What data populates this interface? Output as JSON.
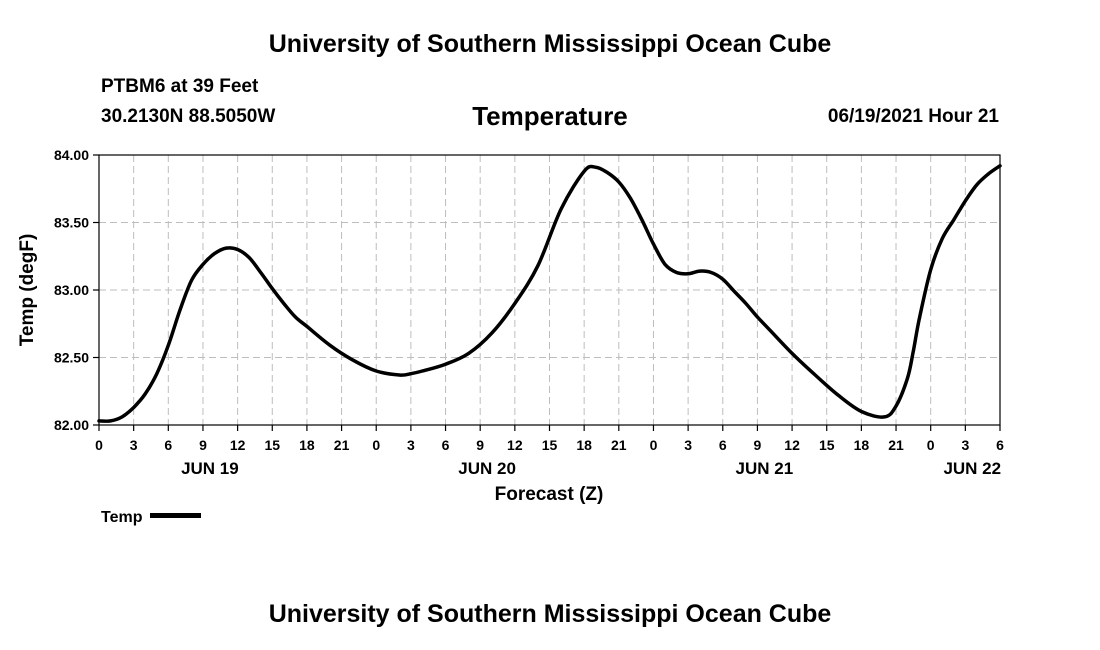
{
  "header": {
    "title": "University of Southern Mississippi Ocean Cube",
    "station": "PTBM6 at 39 Feet",
    "coords": "30.2130N  88.5050W",
    "datetime": "06/19/2021 Hour 21"
  },
  "footer": {
    "title": "University of Southern Mississippi Ocean Cube"
  },
  "chart_data": {
    "type": "line",
    "title": "Temperature",
    "xlabel": "Forecast (Z)",
    "ylabel": "Temp (degF)",
    "ylim": [
      82.0,
      84.0
    ],
    "yticks": [
      "82.00",
      "82.50",
      "83.00",
      "83.50",
      "84.00"
    ],
    "x_unit": "hours since JUN 19 00Z",
    "xlim": [
      0,
      78
    ],
    "xticks": [
      {
        "x": 0,
        "label": "0"
      },
      {
        "x": 3,
        "label": "3"
      },
      {
        "x": 6,
        "label": "6"
      },
      {
        "x": 9,
        "label": "9"
      },
      {
        "x": 12,
        "label": "12"
      },
      {
        "x": 15,
        "label": "15"
      },
      {
        "x": 18,
        "label": "18"
      },
      {
        "x": 21,
        "label": "21"
      },
      {
        "x": 24,
        "label": "0"
      },
      {
        "x": 27,
        "label": "3"
      },
      {
        "x": 30,
        "label": "6"
      },
      {
        "x": 33,
        "label": "9"
      },
      {
        "x": 36,
        "label": "12"
      },
      {
        "x": 39,
        "label": "15"
      },
      {
        "x": 42,
        "label": "18"
      },
      {
        "x": 45,
        "label": "21"
      },
      {
        "x": 48,
        "label": "0"
      },
      {
        "x": 51,
        "label": "3"
      },
      {
        "x": 54,
        "label": "6"
      },
      {
        "x": 57,
        "label": "9"
      },
      {
        "x": 60,
        "label": "12"
      },
      {
        "x": 63,
        "label": "15"
      },
      {
        "x": 66,
        "label": "18"
      },
      {
        "x": 69,
        "label": "21"
      },
      {
        "x": 72,
        "label": "0"
      },
      {
        "x": 75,
        "label": "3"
      },
      {
        "x": 78,
        "label": "6"
      }
    ],
    "date_labels": [
      {
        "x": 9.6,
        "label": "JUN 19"
      },
      {
        "x": 33.6,
        "label": "JUN 20"
      },
      {
        "x": 57.6,
        "label": "JUN 21"
      },
      {
        "x": 75.6,
        "label": "JUN 22"
      }
    ],
    "grid": true,
    "legend": {
      "position": "bottom-left",
      "label": "Temp"
    },
    "series": [
      {
        "name": "Temp",
        "x": [
          0,
          1,
          2,
          3,
          4,
          5,
          6,
          7,
          8,
          9,
          10,
          11,
          12,
          13,
          14,
          15,
          16,
          17,
          18,
          20,
          22,
          24,
          26,
          27,
          28,
          30,
          32,
          34,
          36,
          38,
          40,
          42,
          43,
          44,
          45,
          46,
          47,
          48,
          49,
          50,
          51,
          52,
          53,
          54,
          55,
          56,
          57,
          58,
          60,
          62,
          64,
          66,
          68,
          69,
          70,
          70.5,
          71,
          72,
          73,
          74,
          75,
          76,
          77,
          78
        ],
        "values": [
          82.03,
          82.03,
          82.06,
          82.13,
          82.23,
          82.38,
          82.59,
          82.85,
          83.07,
          83.19,
          83.27,
          83.31,
          83.3,
          83.24,
          83.13,
          83.01,
          82.9,
          82.8,
          82.73,
          82.59,
          82.48,
          82.4,
          82.37,
          82.38,
          82.4,
          82.45,
          82.53,
          82.68,
          82.9,
          83.18,
          83.6,
          83.88,
          83.91,
          83.87,
          83.8,
          83.68,
          83.52,
          83.34,
          83.19,
          83.13,
          83.12,
          83.14,
          83.13,
          83.08,
          82.99,
          82.9,
          82.8,
          82.71,
          82.53,
          82.37,
          82.22,
          82.1,
          82.06,
          82.14,
          82.35,
          82.55,
          82.78,
          83.15,
          83.38,
          83.52,
          83.66,
          83.78,
          83.86,
          83.92
        ]
      }
    ]
  }
}
